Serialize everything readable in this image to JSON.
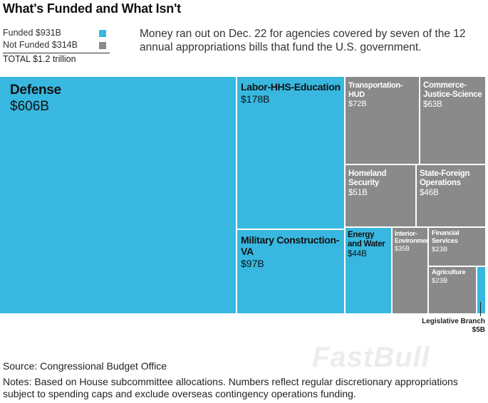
{
  "title": "What's Funded and What Isn't",
  "subtitle": "Money ran out on Dec. 22 for agencies covered by seven of the 12 annual appropriations bills that fund the U.S. government.",
  "legend": {
    "funded": "Funded $931B",
    "not_funded": "Not Funded $314B",
    "total": "TOTAL $1.2 trillion"
  },
  "colors": {
    "funded": "#38b8e0",
    "not_funded": "#8a8a8a"
  },
  "chart_data": {
    "type": "treemap",
    "units": "billions USD",
    "total": 1245,
    "items": [
      {
        "label": "Defense",
        "value_label": "$606B",
        "value": 606,
        "status": "funded"
      },
      {
        "label": "Labor-HHS-Education",
        "value_label": "$178B",
        "value": 178,
        "status": "funded"
      },
      {
        "label": "Military Construction-VA",
        "value_label": "$97B",
        "value": 97,
        "status": "funded"
      },
      {
        "label": "Transportation-HUD",
        "value_label": "$72B",
        "value": 72,
        "status": "not_funded"
      },
      {
        "label": "Commerce-Justice-Science",
        "value_label": "$63B",
        "value": 63,
        "status": "not_funded"
      },
      {
        "label": "Homeland Security",
        "value_label": "$51B",
        "value": 51,
        "status": "not_funded"
      },
      {
        "label": "State-Foreign Operations",
        "value_label": "$46B",
        "value": 46,
        "status": "not_funded"
      },
      {
        "label": "Energy and Water",
        "value_label": "$44B",
        "value": 44,
        "status": "funded"
      },
      {
        "label": "Interior-Environment",
        "value_label": "$35B",
        "value": 35,
        "status": "not_funded"
      },
      {
        "label": "Financial Services",
        "value_label": "$23B",
        "value": 23,
        "status": "not_funded"
      },
      {
        "label": "Agriculture",
        "value_label": "$23B",
        "value": 23,
        "status": "not_funded"
      },
      {
        "label": "Legislative Branch",
        "value_label": "$5B",
        "value": 5,
        "status": "funded"
      }
    ]
  },
  "source": "Source: Congressional Budget Office",
  "notes": "Notes: Based on House subcommittee allocations. Numbers reflect regular discretionary appropriations subject to spending caps and exclude overseas contingency operations funding.",
  "watermark": "FastBull"
}
